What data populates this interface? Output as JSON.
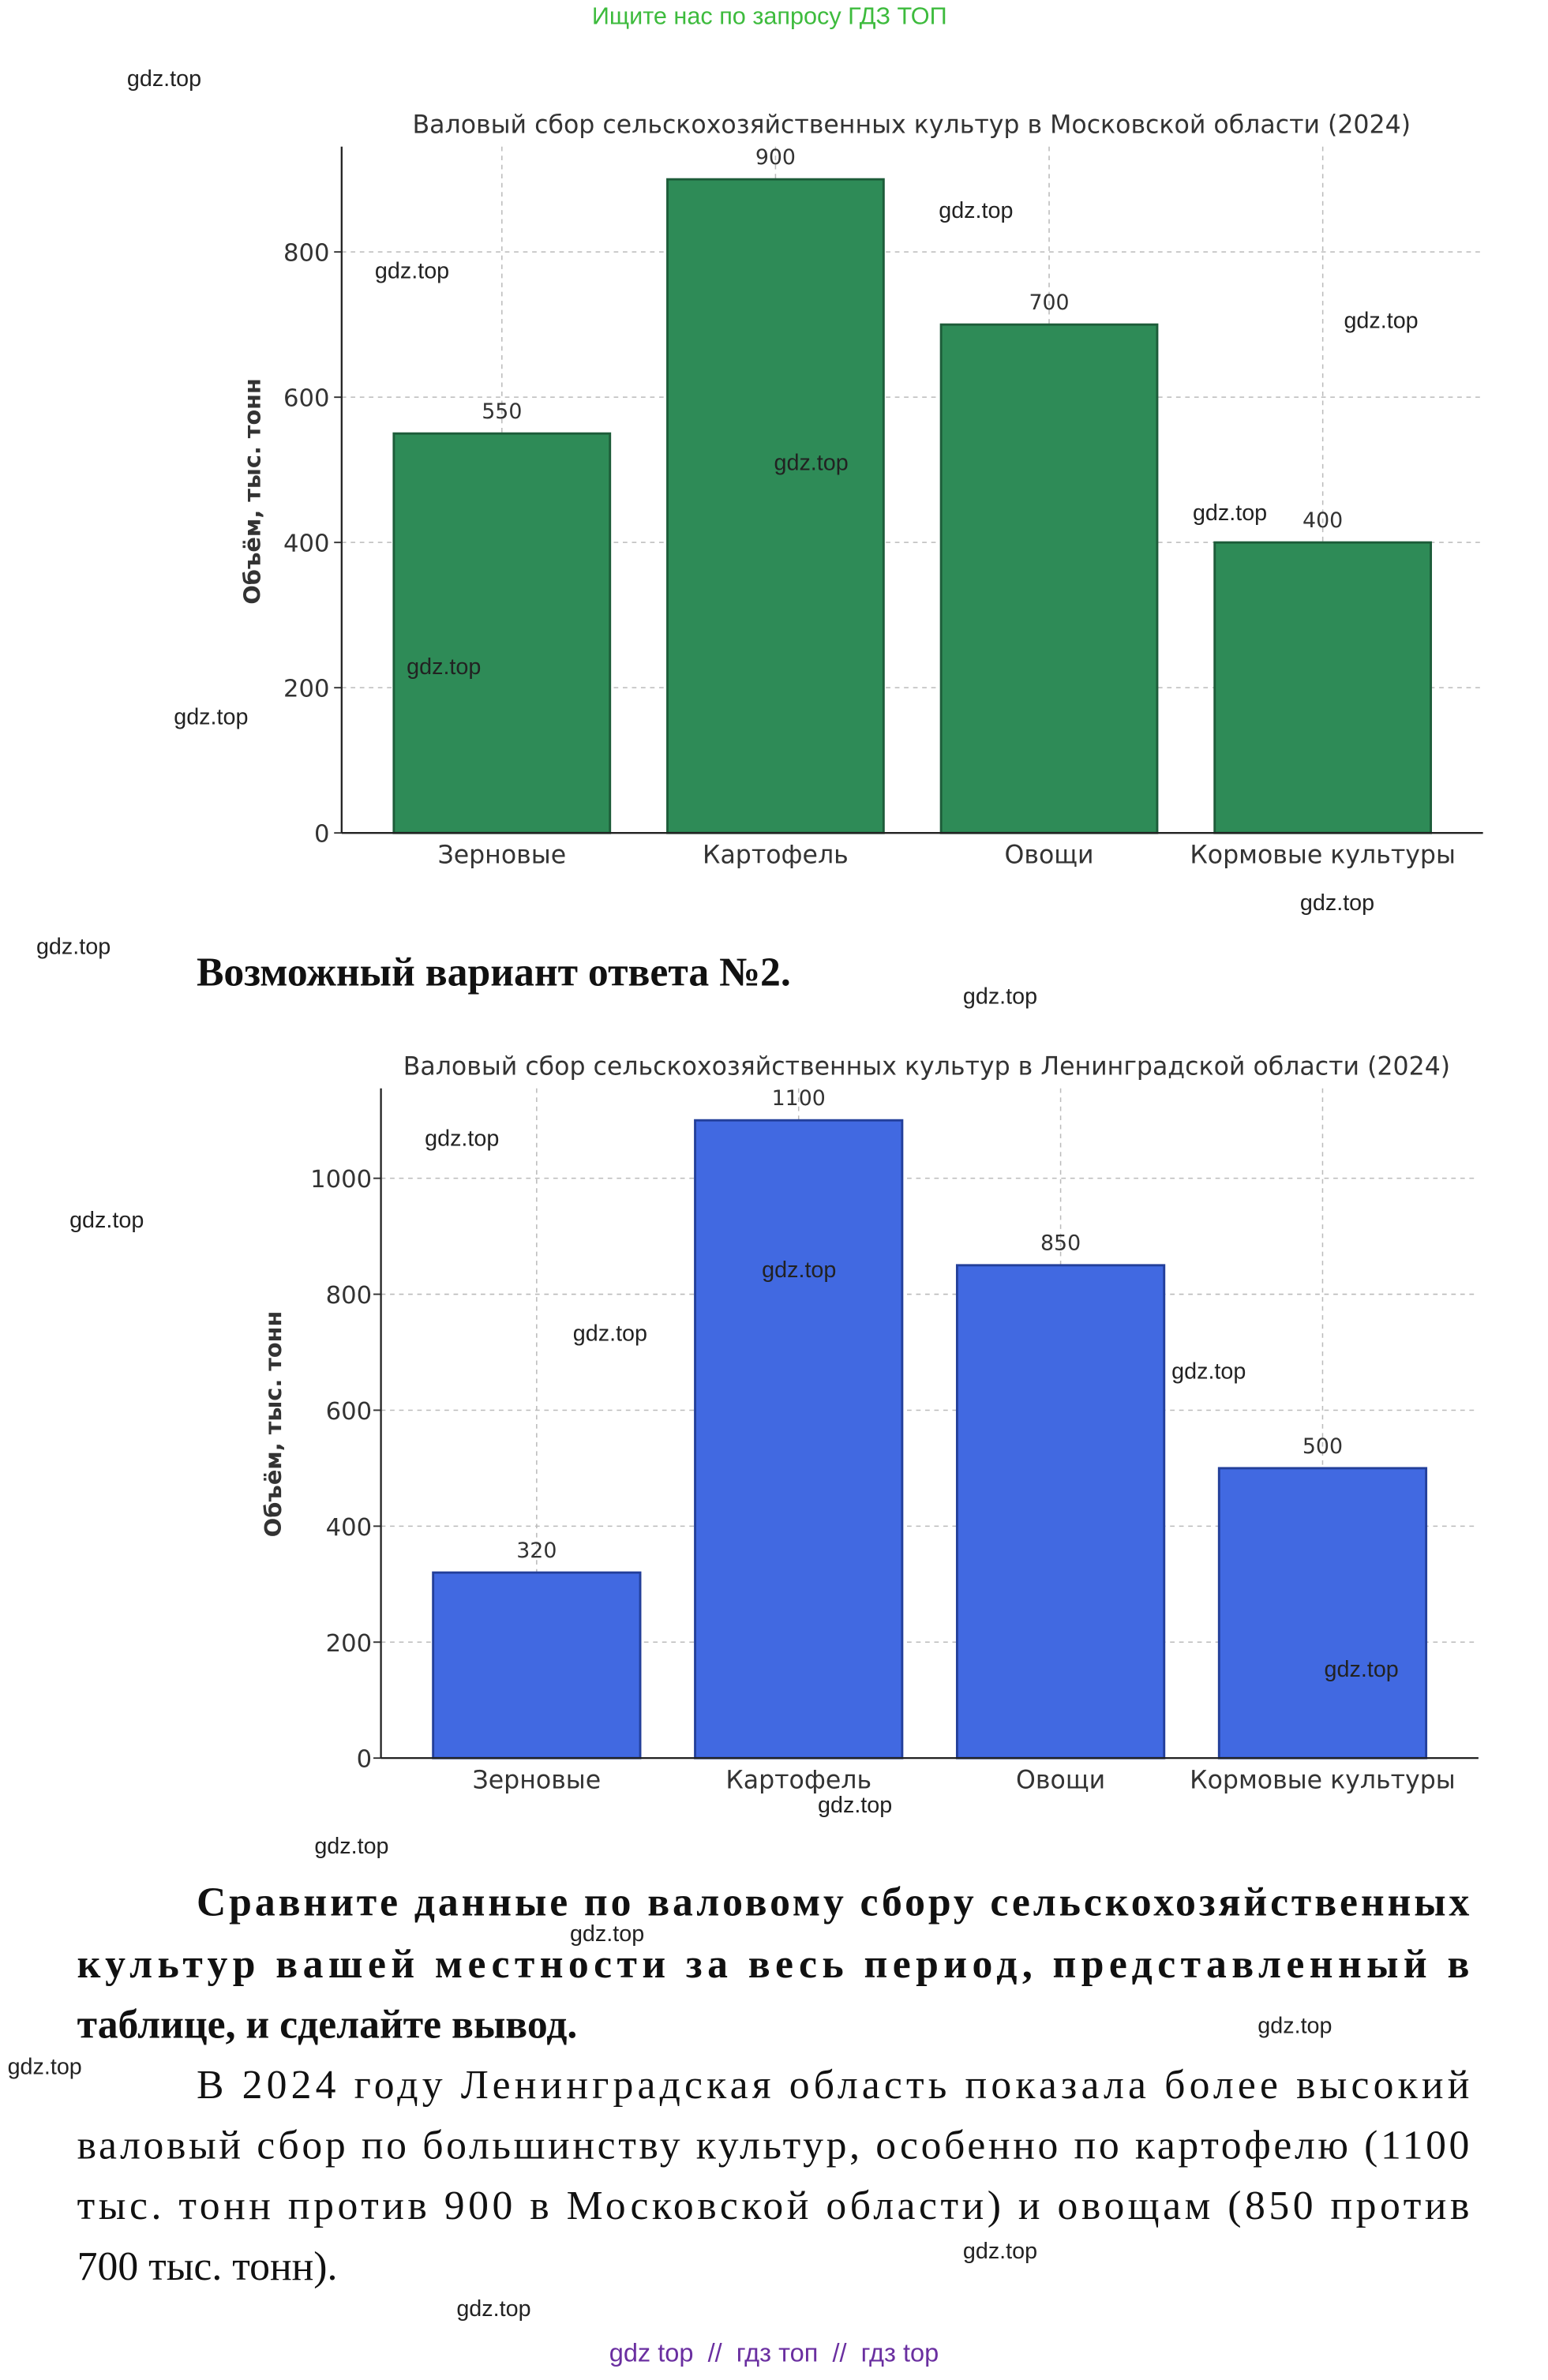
{
  "header": {
    "link": "Ищите нас по запросу ГДЗ ТОП"
  },
  "chart_data": [
    {
      "type": "bar",
      "title": "Валовый сбор сельскохозяйственных культур в Московской области (2024)",
      "y_label": "Объём, тыс. тонн",
      "categories": [
        "Зерновые",
        "Картофель",
        "Овощи",
        "Кормовые культуры"
      ],
      "values": [
        550,
        900,
        700,
        400
      ],
      "color": "#2e8b57",
      "ylim": [
        0,
        945
      ],
      "yticks": [
        0,
        200,
        400,
        600,
        800
      ],
      "grid": true
    },
    {
      "type": "bar",
      "title": "Валовый сбор сельскохозяйственных культур в Ленинградской области (2024)",
      "y_label": "Объём, тыс. тонн",
      "categories": [
        "Зерновые",
        "Картофель",
        "Овощи",
        "Кормовые культуры"
      ],
      "values": [
        320,
        1100,
        850,
        500
      ],
      "color": "#4169e1",
      "ylim": [
        0,
        1155
      ],
      "yticks": [
        0,
        200,
        400,
        600,
        800,
        1000
      ],
      "grid": true
    }
  ],
  "heading": "Возможный вариант ответа №2.",
  "question": [
    "Сравните данные по валовому сбору сельскохозяйственных",
    "культур вашей местности за весь период, представленный в",
    "таблице, и сделайте вывод."
  ],
  "answer": [
    "В 2024 году Ленинградская область показала более высокий",
    "валовый сбор по большинству культур, особенно по картофелю (1100",
    "тыс. тонн против 900 в Московской области) и овощам (850 против",
    "700 тыс. тонн)."
  ],
  "watermarks": [
    "gdz.top",
    "gdz.top",
    "gdz.top",
    "gdz.top",
    "gdz.top",
    "gdz.top",
    "gdz.top",
    "gdz.top",
    "gdz.top",
    "gdz.top",
    "gdz.top",
    "gdz.top",
    "gdz.top",
    "gdz.top",
    "gdz.top",
    "gdz.top",
    "gdz.top",
    "gdz.top",
    "gdz.top",
    "gdz.top",
    "gdz.top",
    "gdz.top",
    "gdz.top",
    "gdz.top"
  ],
  "footer": "gdz top  //  гдз топ  //  гдз top"
}
